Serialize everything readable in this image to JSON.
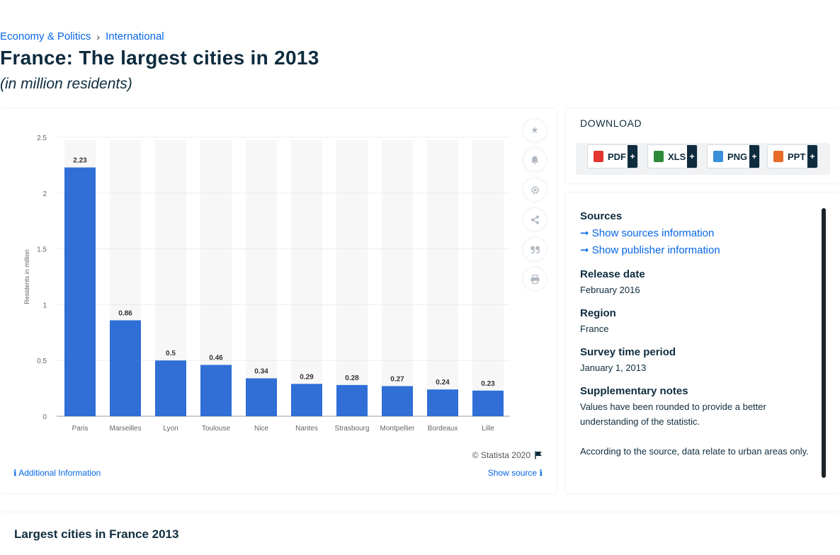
{
  "breadcrumb": {
    "items": [
      "Economy & Politics",
      "International"
    ],
    "separator": "›"
  },
  "page": {
    "title": "France: The largest cities in 2013",
    "subtitle": "(in million residents)"
  },
  "chart_data": {
    "type": "bar",
    "categories": [
      "Paris",
      "Marseilles",
      "Lyon",
      "Toulouse",
      "Nice",
      "Nantes",
      "Strasbourg",
      "Montpellier",
      "Bordeaux",
      "Lille"
    ],
    "values": [
      2.23,
      0.86,
      0.5,
      0.46,
      0.34,
      0.29,
      0.28,
      0.27,
      0.24,
      0.23
    ],
    "value_labels": [
      "2.23",
      "0.86",
      "0.5",
      "0.46",
      "0.34",
      "0.29",
      "0.28",
      "0.27",
      "0.24",
      "0.23"
    ],
    "ylabel": "Residents in million",
    "xlabel": "",
    "ylim": [
      0,
      2.5
    ],
    "yticks": [
      0,
      0.5,
      1,
      1.5,
      2,
      2.5
    ],
    "ytick_labels": [
      "0",
      "0.5",
      "1",
      "1.5",
      "2",
      "2.5"
    ],
    "bar_color": "#2f6fd6",
    "grid": true,
    "legend": false
  },
  "toolbar": {
    "icons": [
      "star-icon",
      "bell-icon",
      "gear-icon",
      "share-icon",
      "quote-icon",
      "print-icon"
    ]
  },
  "footer": {
    "copyright": "© Statista 2020",
    "additional_info": "Additional Information",
    "show_source": "Show source"
  },
  "download": {
    "title": "DOWNLOAD",
    "buttons": [
      {
        "label": "PDF",
        "color": "#e2362f"
      },
      {
        "label": "XLS",
        "color": "#2e8b3a"
      },
      {
        "label": "PNG",
        "color": "#3a8fd9"
      },
      {
        "label": "PPT",
        "color": "#e86b2a"
      }
    ],
    "plus": "+"
  },
  "info": {
    "sources_heading": "Sources",
    "sources_link": "Show sources information",
    "publisher_link": "Show publisher information",
    "release_heading": "Release date",
    "release_value": "February 2016",
    "region_heading": "Region",
    "region_value": "France",
    "period_heading": "Survey time period",
    "period_value": "January 1, 2013",
    "notes_heading": "Supplementary notes",
    "notes_p1": "Values have been rounded to provide a better understanding of the statistic.",
    "notes_p2": "According to the source, data relate to urban areas only."
  },
  "bottom": {
    "title": "Largest cities in France 2013"
  }
}
